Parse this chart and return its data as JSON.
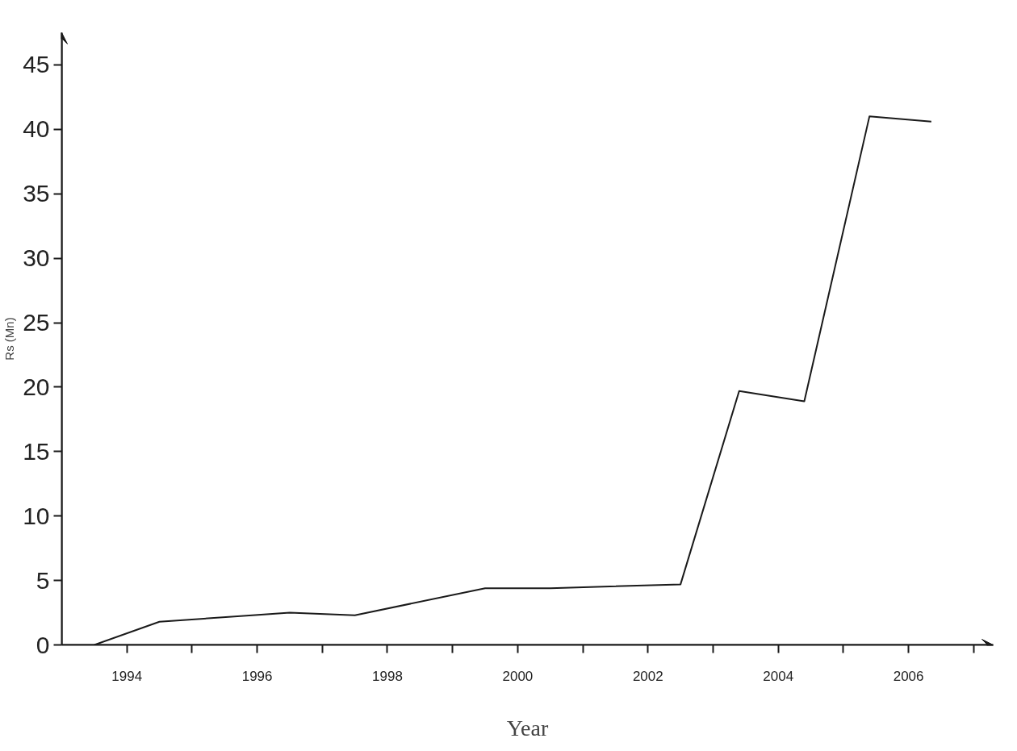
{
  "chart_data": {
    "type": "line",
    "xlabel": "Year",
    "ylabel": "Rs (Mn)",
    "series": [
      {
        "color": "#1a1a1a",
        "x": [
          1993.5,
          1994.5,
          1996.5,
          1997.5,
          1999.5,
          2000.5,
          2002.5,
          2003.4,
          2004.4,
          2005.4,
          2006.35
        ],
        "values": [
          0,
          1.8,
          2.5,
          2.3,
          4.4,
          4.4,
          4.7,
          19.7,
          18.9,
          41,
          40.6
        ]
      }
    ],
    "xlim": [
      1993,
      2007.3
    ],
    "ylim": [
      0,
      47.5
    ],
    "xticks": [
      1994,
      {
        "value": 1995,
        "label": null
      },
      1996,
      {
        "value": 1997,
        "label": null
      },
      1998,
      {
        "value": 1999,
        "label": null
      },
      2000,
      {
        "value": 2001,
        "label": null
      },
      2002,
      {
        "value": 2003,
        "label": null
      },
      2004,
      {
        "value": 2005,
        "label": null
      },
      2006,
      {
        "value": 2007,
        "label": null
      }
    ],
    "yticks": [
      0,
      5,
      10,
      15,
      20,
      25,
      30,
      35,
      40,
      45
    ],
    "grid": false,
    "marker": "none",
    "line_style": "solid"
  }
}
